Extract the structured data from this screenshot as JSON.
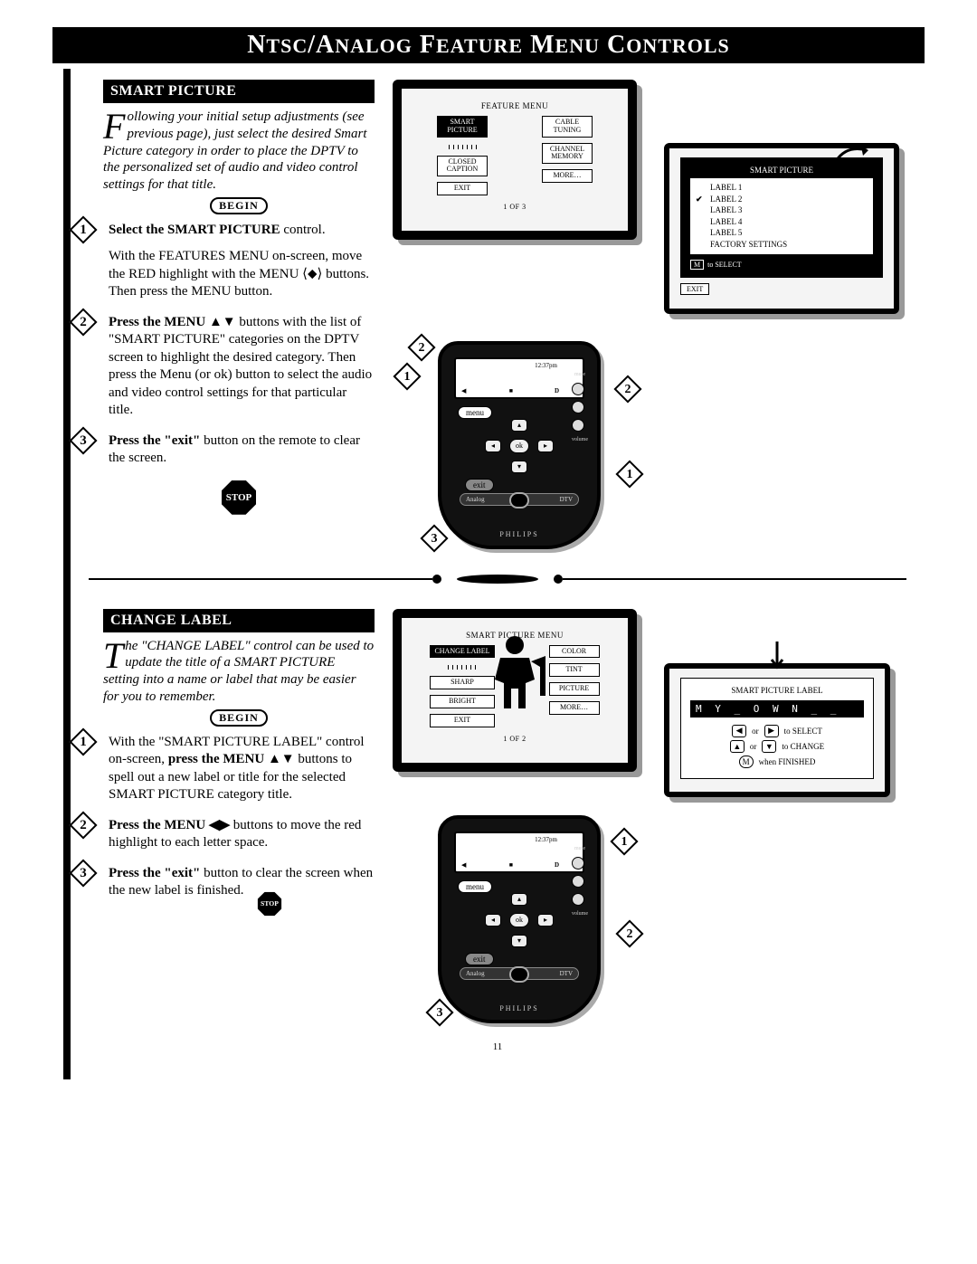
{
  "page": {
    "title_html": "N<span class='title-sc'>TSC</span>/A<span class='title-sc'>NALOG</span> F<span class='title-sc'>EATURE</span> M<span class='title-sc'>ENU</span> C<span class='title-sc'>ONTROLS</span>",
    "page_number": "11"
  },
  "badges": {
    "begin": "BEGIN",
    "stop": "STOP"
  },
  "smart_picture": {
    "header": "SMART PICTURE",
    "intro_dropcap": "F",
    "intro_rest": "ollowing your initial setup adjustments (see previous page), just select the desired Smart Picture category in order to place the DPTV to the personalized set of audio and video control settings for that title.",
    "steps": [
      {
        "num": "1",
        "lead": "Select the SMART PICTURE",
        "rest": " control."
      },
      {
        "num": "",
        "para": "With the FEATURES MENU on-screen, move the RED highlight with the MENU ⟨⬥⟩ buttons. Then press the MENU button."
      },
      {
        "num": "2",
        "lead": "Press the MENU ▲▼",
        "rest": " buttons with the list of \"SMART PICTURE\" categories on the DPTV screen to highlight the desired category. Then press the Menu (or ok) button to select the audio and video control settings for that particular title."
      },
      {
        "num": "3",
        "lead": "Press the \"exit\"",
        "rest": " button on the remote to clear the screen."
      }
    ],
    "feature_menu": {
      "title": "FEATURE MENU",
      "left": [
        "SMART\nPICTURE",
        "CLOSED\nCAPTION",
        "EXIT"
      ],
      "right": [
        "CABLE\nTUNING",
        "CHANNEL\nMEMORY",
        "MORE…"
      ],
      "selected": "SMART\nPICTURE",
      "page": "1 OF 3"
    },
    "label_panel": {
      "title": "SMART PICTURE",
      "items": [
        "LABEL 1",
        "LABEL 2",
        "LABEL 3",
        "LABEL 4",
        "LABEL 5",
        "FACTORY SETTINGS"
      ],
      "checked": "LABEL 2",
      "foot_key": "M",
      "foot_text": "to SELECT",
      "exit": "EXIT"
    },
    "remote_callouts": [
      "1",
      "2",
      "2",
      "1",
      "3"
    ]
  },
  "change_label": {
    "header": "CHANGE LABEL",
    "intro_dropcap": "T",
    "intro_rest": "he \"CHANGE LABEL\" control can be used to update the title of a SMART PICTURE setting into a name or label that may be easier for you to remember.",
    "steps": [
      {
        "num": "1",
        "plain_lead": "With the \"SMART PICTURE LABEL\" control on-screen, ",
        "lead": "press the MENU ▲▼",
        "rest": " buttons to spell out a new label or title for the selected SMART PICTURE category title."
      },
      {
        "num": "2",
        "lead": "Press the  MENU ◀▶",
        "rest": " buttons to move the red highlight to each letter space."
      },
      {
        "num": "3",
        "lead": "Press the \"exit\"",
        "rest": " button to clear the screen when the new label is finished."
      }
    ],
    "sp_menu": {
      "title": "SMART PICTURE MENU",
      "left": [
        "CHANGE LABEL",
        "SHARP",
        "BRIGHT",
        "EXIT"
      ],
      "right": [
        "COLOR",
        "TINT",
        "PICTURE",
        "MORE…"
      ],
      "selected": "CHANGE LABEL",
      "page": "1 OF 2"
    },
    "edit_panel": {
      "title": "SMART PICTURE LABEL",
      "value": "M Y _ O W N _ _",
      "hint1_left": "◀",
      "hint1_or": "or",
      "hint1_right": "▶",
      "hint1_text": "to SELECT",
      "hint2_left": "▲",
      "hint2_or": "or",
      "hint2_right": "▼",
      "hint2_text": "to CHANGE",
      "hint3_key": "M",
      "hint3_text": "when FINISHED"
    },
    "remote_callouts": [
      "1",
      "2",
      "3"
    ]
  },
  "remote": {
    "time": "12:37pm",
    "menu": "menu",
    "exit": "exit",
    "ok": "ok",
    "analog": "Analog",
    "dtv": "DTV",
    "brand": "PHILIPS",
    "mute": "mute",
    "volume": "volume"
  },
  "colors": {
    "black": "#000000",
    "shadow": "#bdbdbd",
    "panel_bg": "#f4f4f4"
  }
}
